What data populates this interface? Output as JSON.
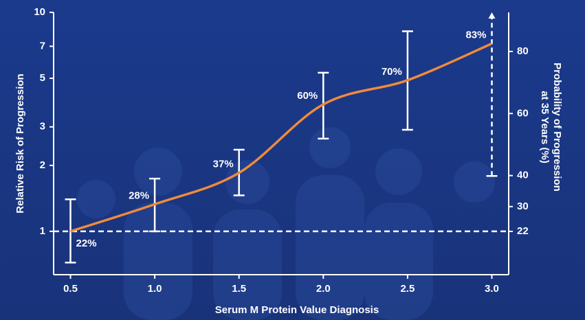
{
  "chart_data": {
    "type": "line",
    "x_label": "Serum M Protein Value Diagnosis",
    "y_label": "Relative Risk of Progression",
    "y2_label": [
      "Probability of Progression",
      "at 35 Years (%)"
    ],
    "xlim": [
      0.4,
      3.1
    ],
    "xticks": [
      0.5,
      {
        "value": 1,
        "label": "1.0"
      },
      1.5,
      {
        "value": 2,
        "label": "2.0"
      },
      2.5,
      {
        "value": 3,
        "label": "3.0"
      }
    ],
    "ylim": [
      0.634,
      10
    ],
    "ylog": true,
    "yticks": [
      1,
      2,
      3,
      5,
      7,
      10
    ],
    "y2lim": [
      8.05,
      92.6
    ],
    "y2ticks": [
      22,
      30,
      40,
      60,
      80
    ],
    "hline": 1,
    "x": [
      0.5,
      1,
      1.5,
      2,
      2.5,
      3
    ],
    "series": [
      {
        "color": "#f08a3c",
        "values": [
          1,
          1.33,
          1.85,
          3.8,
          4.9,
          7.2
        ]
      }
    ],
    "error_lower": [
      0.72,
      1,
      1.46,
      2.65,
      2.91,
      1.79
    ],
    "error_upper": [
      1.4,
      1.74,
      2.36,
      5.3,
      8.2,
      10
    ],
    "error_dashed": [
      false,
      false,
      false,
      false,
      false,
      true
    ],
    "probability": {
      "values": [
        22,
        28,
        37,
        60,
        70,
        83
      ],
      "value_labels": [
        "22%",
        "28%",
        "37%",
        "60%",
        "70%",
        "83%"
      ]
    }
  }
}
